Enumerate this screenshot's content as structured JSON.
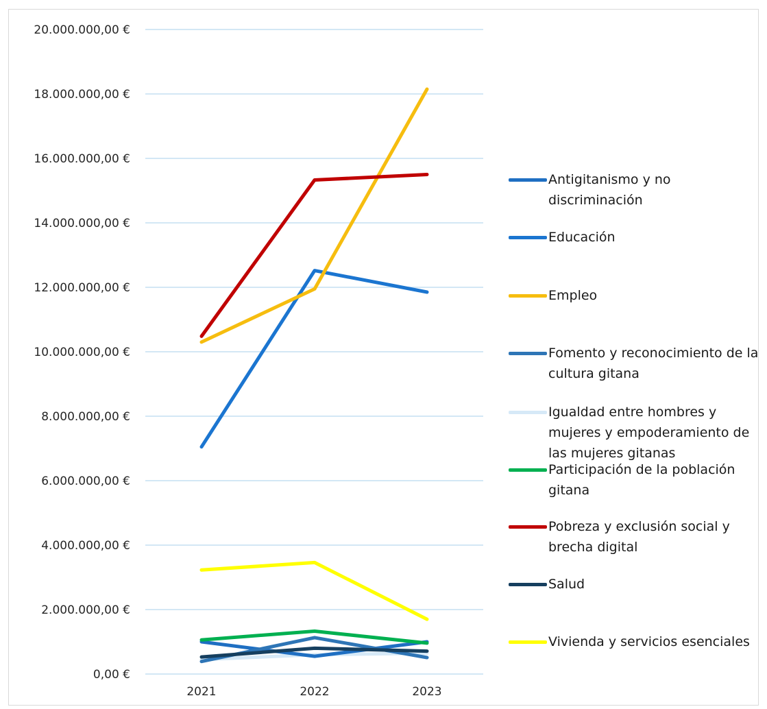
{
  "chart_data": {
    "type": "line",
    "title": "",
    "xlabel": "",
    "ylabel": "",
    "categories": [
      "2021",
      "2022",
      "2023"
    ],
    "ylim": [
      0,
      20000000
    ],
    "y_ticks": [
      0,
      2000000,
      4000000,
      6000000,
      8000000,
      10000000,
      12000000,
      14000000,
      16000000,
      18000000,
      20000000
    ],
    "y_tick_labels": [
      "0,00 €",
      "2.000.000,00 €",
      "4.000.000,00 €",
      "6.000.000,00 €",
      "8.000.000,00 €",
      "10.000.000,00 €",
      "12.000.000,00 €",
      "14.000.000,00 €",
      "16.000.000,00 €",
      "18.000.000,00 €",
      "20.000.000,00 €"
    ],
    "grid": true,
    "legend_position": "right",
    "series": [
      {
        "name": "Antigitanismo y no discriminación",
        "color": "#1f6fc2",
        "values": [
          1000000,
          550000,
          1000000
        ]
      },
      {
        "name": "Educación",
        "color": "#1b75d0",
        "values": [
          7050000,
          12520000,
          11850000
        ]
      },
      {
        "name": "Empleo",
        "color": "#f6bd0f",
        "values": [
          10300000,
          11950000,
          18150000
        ]
      },
      {
        "name": "Fomento y reconocimiento de la cultura gitana",
        "color": "#2e75b6",
        "values": [
          390000,
          1130000,
          510000
        ]
      },
      {
        "name": "Igualdad entre hombres y mujeres y empoderamiento de las mujeres gitanas",
        "color": "#d6e9f7",
        "values": [
          450000,
          600000,
          650000
        ]
      },
      {
        "name": "Participación de la población gitana",
        "color": "#00b050",
        "values": [
          1060000,
          1330000,
          960000
        ]
      },
      {
        "name": "Pobreza y exclusión social y brecha digital",
        "color": "#c00000",
        "values": [
          10480000,
          15330000,
          15500000
        ]
      },
      {
        "name": "Salud",
        "color": "#163f5f",
        "values": [
          530000,
          800000,
          710000
        ]
      },
      {
        "name": "Vivienda y servicios esenciales",
        "color": "#ffff00",
        "values": [
          3230000,
          3460000,
          1700000
        ]
      }
    ]
  }
}
